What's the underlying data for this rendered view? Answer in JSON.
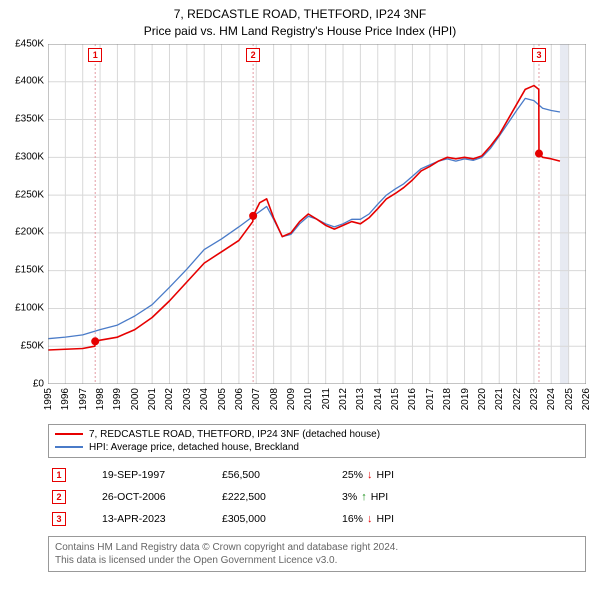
{
  "title_line1": "7, REDCASTLE ROAD, THETFORD, IP24 3NF",
  "title_line2": "Price paid vs. HM Land Registry's House Price Index (HPI)",
  "chart": {
    "type": "line",
    "background_color": "#ffffff",
    "grid_color": "#d8d8d8",
    "axis_color": "#000000",
    "ylim": [
      0,
      450000
    ],
    "ytick_step": 50000,
    "ytick_labels": [
      "£0",
      "£50K",
      "£100K",
      "£150K",
      "£200K",
      "£250K",
      "£300K",
      "£350K",
      "£400K",
      "£450K"
    ],
    "xlim": [
      1995,
      2026
    ],
    "xtick_step": 1,
    "xtick_labels": [
      "1995",
      "1996",
      "1997",
      "1998",
      "1999",
      "2000",
      "2001",
      "2002",
      "2003",
      "2004",
      "2005",
      "2006",
      "2007",
      "2008",
      "2009",
      "2010",
      "2011",
      "2012",
      "2013",
      "2014",
      "2015",
      "2016",
      "2017",
      "2018",
      "2019",
      "2020",
      "2021",
      "2022",
      "2023",
      "2024",
      "2025",
      "2026"
    ],
    "label_fontsize": 10,
    "series": [
      {
        "name": "red",
        "color": "#e60000",
        "width": 1.6,
        "data": [
          [
            1995,
            45000
          ],
          [
            1996,
            46000
          ],
          [
            1997,
            47000
          ],
          [
            1997.7,
            50000
          ],
          [
            1997.72,
            56500
          ],
          [
            1998,
            58000
          ],
          [
            1999,
            62000
          ],
          [
            2000,
            72000
          ],
          [
            2001,
            88000
          ],
          [
            2002,
            110000
          ],
          [
            2003,
            135000
          ],
          [
            2004,
            160000
          ],
          [
            2005,
            175000
          ],
          [
            2006,
            190000
          ],
          [
            2006.8,
            215000
          ],
          [
            2006.82,
            222500
          ],
          [
            2007.2,
            240000
          ],
          [
            2007.6,
            245000
          ],
          [
            2008,
            220000
          ],
          [
            2008.5,
            195000
          ],
          [
            2009,
            200000
          ],
          [
            2009.5,
            215000
          ],
          [
            2010,
            225000
          ],
          [
            2010.5,
            218000
          ],
          [
            2011,
            210000
          ],
          [
            2011.5,
            205000
          ],
          [
            2012,
            210000
          ],
          [
            2012.5,
            215000
          ],
          [
            2013,
            212000
          ],
          [
            2013.5,
            220000
          ],
          [
            2014,
            232000
          ],
          [
            2014.5,
            245000
          ],
          [
            2015,
            252000
          ],
          [
            2015.5,
            260000
          ],
          [
            2016,
            270000
          ],
          [
            2016.5,
            282000
          ],
          [
            2017,
            288000
          ],
          [
            2017.5,
            295000
          ],
          [
            2018,
            300000
          ],
          [
            2018.5,
            298000
          ],
          [
            2019,
            300000
          ],
          [
            2019.5,
            298000
          ],
          [
            2020,
            302000
          ],
          [
            2020.5,
            315000
          ],
          [
            2021,
            330000
          ],
          [
            2021.5,
            350000
          ],
          [
            2022,
            370000
          ],
          [
            2022.5,
            390000
          ],
          [
            2023,
            395000
          ],
          [
            2023.28,
            390000
          ],
          [
            2023.29,
            305000
          ],
          [
            2023.5,
            300000
          ],
          [
            2024,
            298000
          ],
          [
            2024.5,
            295000
          ]
        ]
      },
      {
        "name": "blue",
        "color": "#4a7bc8",
        "width": 1.3,
        "data": [
          [
            1995,
            60000
          ],
          [
            1996,
            62000
          ],
          [
            1997,
            65000
          ],
          [
            1998,
            72000
          ],
          [
            1999,
            78000
          ],
          [
            2000,
            90000
          ],
          [
            2001,
            105000
          ],
          [
            2002,
            128000
          ],
          [
            2003,
            152000
          ],
          [
            2004,
            178000
          ],
          [
            2005,
            192000
          ],
          [
            2006,
            208000
          ],
          [
            2007,
            225000
          ],
          [
            2007.6,
            235000
          ],
          [
            2008,
            218000
          ],
          [
            2008.5,
            195000
          ],
          [
            2009,
            198000
          ],
          [
            2009.5,
            212000
          ],
          [
            2010,
            222000
          ],
          [
            2010.5,
            218000
          ],
          [
            2011,
            212000
          ],
          [
            2011.5,
            208000
          ],
          [
            2012,
            212000
          ],
          [
            2012.5,
            218000
          ],
          [
            2013,
            218000
          ],
          [
            2013.5,
            225000
          ],
          [
            2014,
            238000
          ],
          [
            2014.5,
            250000
          ],
          [
            2015,
            258000
          ],
          [
            2015.5,
            265000
          ],
          [
            2016,
            275000
          ],
          [
            2016.5,
            285000
          ],
          [
            2017,
            290000
          ],
          [
            2017.5,
            295000
          ],
          [
            2018,
            298000
          ],
          [
            2018.5,
            295000
          ],
          [
            2019,
            298000
          ],
          [
            2019.5,
            296000
          ],
          [
            2020,
            300000
          ],
          [
            2020.5,
            312000
          ],
          [
            2021,
            328000
          ],
          [
            2021.5,
            345000
          ],
          [
            2022,
            362000
          ],
          [
            2022.5,
            378000
          ],
          [
            2023,
            375000
          ],
          [
            2023.5,
            365000
          ],
          [
            2024,
            362000
          ],
          [
            2024.5,
            360000
          ]
        ]
      }
    ],
    "sale_markers": [
      {
        "n": "1",
        "x": 1997.72,
        "y": 56500,
        "color": "#e60000"
      },
      {
        "n": "2",
        "x": 2006.82,
        "y": 222500,
        "color": "#e60000"
      },
      {
        "n": "3",
        "x": 2023.29,
        "y": 305000,
        "color": "#e60000"
      }
    ],
    "marker_line_color": "#e39ba4",
    "end_band_color": "#cfd6e6"
  },
  "legend": {
    "items": [
      {
        "color": "#e60000",
        "label": "7, REDCASTLE ROAD, THETFORD, IP24 3NF (detached house)"
      },
      {
        "color": "#4a7bc8",
        "label": "HPI: Average price, detached house, Breckland"
      }
    ]
  },
  "sales": [
    {
      "n": "1",
      "date": "19-SEP-1997",
      "price": "£56,500",
      "delta_pct": "25%",
      "delta_dir": "down",
      "delta_label": "HPI",
      "color": "#e60000"
    },
    {
      "n": "2",
      "date": "26-OCT-2006",
      "price": "£222,500",
      "delta_pct": "3%",
      "delta_dir": "up",
      "delta_label": "HPI",
      "color": "#e60000"
    },
    {
      "n": "3",
      "date": "13-APR-2023",
      "price": "£305,000",
      "delta_pct": "16%",
      "delta_dir": "down",
      "delta_label": "HPI",
      "color": "#e60000"
    }
  ],
  "footer_line1": "Contains HM Land Registry data © Crown copyright and database right 2024.",
  "footer_line2": "This data is licensed under the Open Government Licence v3.0."
}
